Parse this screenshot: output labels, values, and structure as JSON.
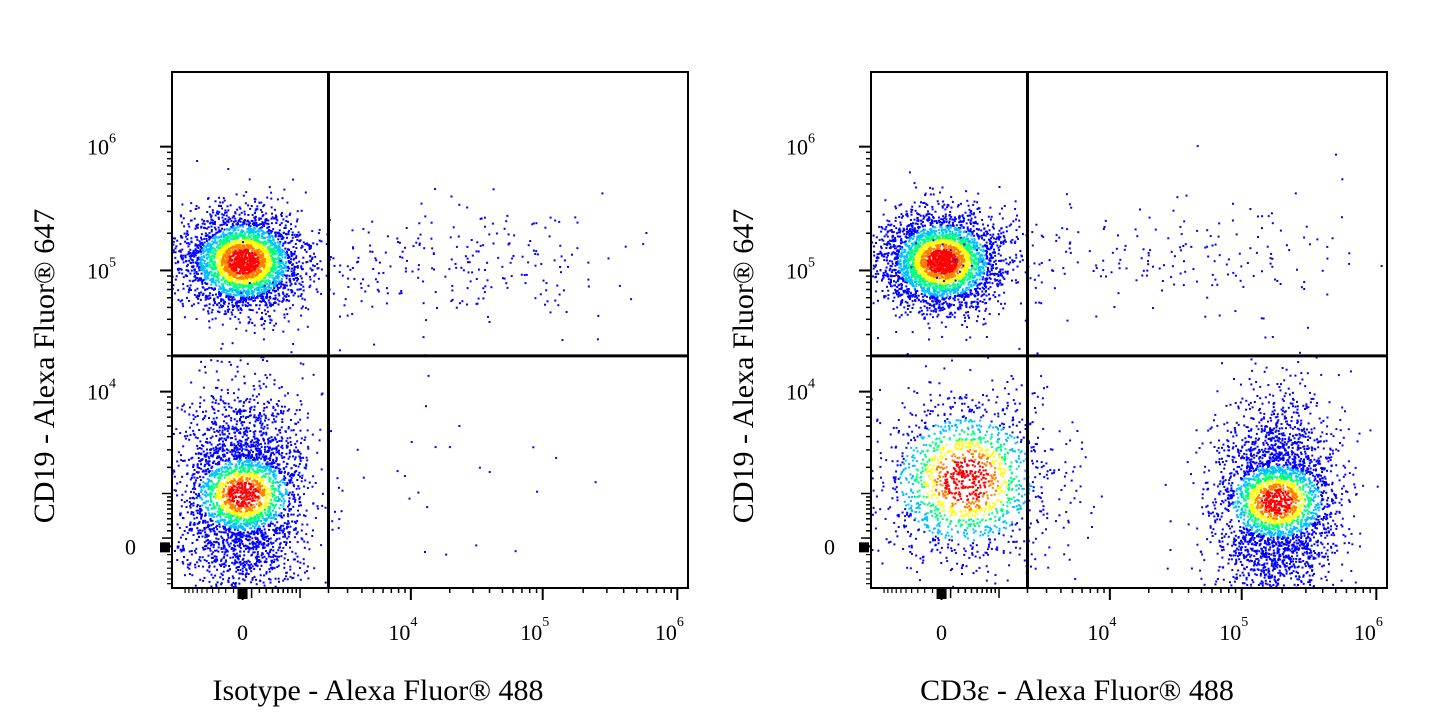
{
  "chart_data": [
    {
      "type": "scatter",
      "subtype": "flow-cytometry-density-dot-plot",
      "xlabel": "Isotype - Alexa Fluor® 488",
      "ylabel": "CD19 - Alexa Fluor® 647",
      "x_scale": "biexponential",
      "y_scale": "biexponential",
      "x_ticks": [
        {
          "base": "0",
          "exp": ""
        },
        {
          "base": "10",
          "exp": "4"
        },
        {
          "base": "10",
          "exp": "5"
        },
        {
          "base": "10",
          "exp": "6"
        }
      ],
      "y_ticks": [
        {
          "base": "10",
          "exp": "6"
        },
        {
          "base": "10",
          "exp": "5"
        },
        {
          "base": "10",
          "exp": "4"
        },
        {
          "base": "0",
          "exp": ""
        }
      ],
      "quadrant_gate": {
        "x": 2000,
        "y": 20000
      },
      "populations": [
        {
          "quadrant": "upper-left",
          "x_center": 0,
          "y_center": 120000,
          "relative_density": "high"
        },
        {
          "quadrant": "lower-left",
          "x_center": 0,
          "y_center": 1000,
          "relative_density": "high"
        },
        {
          "quadrant": "upper-right",
          "x_center": 20000,
          "y_center": 120000,
          "relative_density": "sparse"
        },
        {
          "quadrant": "lower-right",
          "x_center": 20000,
          "y_center": 2000,
          "relative_density": "rare"
        }
      ],
      "grid": false,
      "legend": "none"
    },
    {
      "type": "scatter",
      "subtype": "flow-cytometry-density-dot-plot",
      "xlabel": "CD3ε - Alexa Fluor® 488",
      "ylabel": "CD19 - Alexa Fluor® 647",
      "x_scale": "biexponential",
      "y_scale": "biexponential",
      "x_ticks": [
        {
          "base": "0",
          "exp": ""
        },
        {
          "base": "10",
          "exp": "4"
        },
        {
          "base": "10",
          "exp": "5"
        },
        {
          "base": "10",
          "exp": "6"
        }
      ],
      "y_ticks": [
        {
          "base": "10",
          "exp": "6"
        },
        {
          "base": "10",
          "exp": "5"
        },
        {
          "base": "10",
          "exp": "4"
        },
        {
          "base": "0",
          "exp": ""
        }
      ],
      "quadrant_gate": {
        "x": 2000,
        "y": 20000
      },
      "populations": [
        {
          "quadrant": "upper-left",
          "x_center": 0,
          "y_center": 120000,
          "relative_density": "high"
        },
        {
          "quadrant": "upper-right",
          "x_center": 15000,
          "y_center": 130000,
          "relative_density": "sparse"
        },
        {
          "quadrant": "lower-left",
          "x_center": 300,
          "y_center": 1500,
          "relative_density": "medium"
        },
        {
          "quadrant": "lower-right",
          "x_center": 180000,
          "y_center": 800,
          "relative_density": "high"
        }
      ],
      "grid": false,
      "legend": "none"
    }
  ],
  "colors": {
    "density_scale": [
      "#0000ff",
      "#00c0ff",
      "#00ff80",
      "#ffff00",
      "#ff8000",
      "#ff0000"
    ],
    "axis": "#000000",
    "background": "#ffffff"
  }
}
